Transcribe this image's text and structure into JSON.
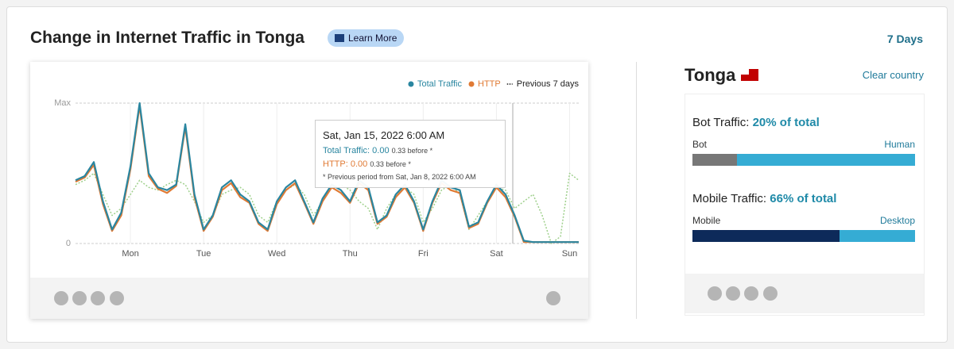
{
  "header": {
    "title": "Change in Internet Traffic in Tonga",
    "learn_more": "Learn More",
    "range": "7 Days"
  },
  "chart_data": {
    "type": "line",
    "categories": [
      null,
      null,
      null,
      null,
      null,
      null,
      "Mon",
      null,
      null,
      null,
      null,
      null,
      null,
      null,
      "Tue",
      null,
      null,
      null,
      null,
      null,
      null,
      null,
      "Wed",
      null,
      null,
      null,
      null,
      null,
      null,
      null,
      "Thu",
      null,
      null,
      null,
      null,
      null,
      null,
      null,
      "Fri",
      null,
      null,
      null,
      null,
      null,
      null,
      null,
      "Sat",
      null,
      null,
      null,
      null,
      null,
      null,
      null,
      "Sun",
      null
    ],
    "series": [
      {
        "name": "Total Traffic",
        "color": "#2a86a0",
        "style": "solid",
        "values": [
          0.45,
          0.48,
          0.58,
          0.3,
          0.1,
          0.22,
          0.55,
          1.0,
          0.5,
          0.4,
          0.38,
          0.42,
          0.85,
          0.35,
          0.1,
          0.2,
          0.4,
          0.45,
          0.35,
          0.3,
          0.15,
          0.1,
          0.3,
          0.4,
          0.45,
          0.3,
          0.15,
          0.32,
          0.42,
          0.38,
          0.3,
          0.45,
          0.4,
          0.15,
          0.2,
          0.35,
          0.42,
          0.3,
          0.1,
          0.3,
          0.45,
          0.4,
          0.38,
          0.12,
          0.15,
          0.3,
          0.42,
          0.35,
          0.2,
          0.02,
          0.01,
          0.01,
          0.01,
          0.01,
          0.01,
          0.01
        ]
      },
      {
        "name": "HTTP",
        "color": "#e07a34",
        "style": "solid",
        "values": [
          0.44,
          0.47,
          0.56,
          0.28,
          0.09,
          0.2,
          0.53,
          0.98,
          0.48,
          0.39,
          0.36,
          0.41,
          0.83,
          0.33,
          0.09,
          0.19,
          0.38,
          0.43,
          0.33,
          0.29,
          0.14,
          0.09,
          0.28,
          0.38,
          0.43,
          0.29,
          0.14,
          0.3,
          0.4,
          0.36,
          0.29,
          0.43,
          0.38,
          0.14,
          0.19,
          0.33,
          0.4,
          0.29,
          0.09,
          0.29,
          0.43,
          0.38,
          0.36,
          0.11,
          0.14,
          0.29,
          0.4,
          0.33,
          0.19,
          0.01,
          0.01,
          0.01,
          0.01,
          0.01,
          0.01,
          0.01
        ]
      },
      {
        "name": "Previous 7 days",
        "color": "#9fd08c",
        "style": "dotted",
        "values": [
          0.42,
          0.45,
          0.5,
          0.35,
          0.2,
          0.25,
          0.35,
          0.45,
          0.4,
          0.38,
          0.42,
          0.45,
          0.42,
          0.3,
          0.15,
          0.2,
          0.35,
          0.38,
          0.4,
          0.35,
          0.2,
          0.15,
          0.3,
          0.38,
          0.42,
          0.35,
          0.2,
          0.3,
          0.4,
          0.42,
          0.38,
          0.3,
          0.25,
          0.1,
          0.25,
          0.35,
          0.4,
          0.35,
          0.15,
          0.25,
          0.38,
          0.42,
          0.35,
          0.1,
          0.2,
          0.3,
          0.4,
          0.38,
          0.25,
          0.3,
          0.35,
          0.2,
          0.0,
          0.05,
          0.5,
          0.45
        ]
      }
    ],
    "ylim": [
      0,
      1
    ],
    "yticks": [
      0,
      {
        "value": 1,
        "label": "Max"
      }
    ],
    "grid": true
  },
  "tooltip": {
    "title": "Sat, Jan 15, 2022 6:00 AM",
    "lines": [
      {
        "label": "Total Traffic: 0.00",
        "note": "0.33 before *"
      },
      {
        "label": "HTTP: 0.00",
        "note": "0.33 before *"
      }
    ],
    "footnote": "* Previous period from Sat, Jan 8, 2022 6:00 AM"
  },
  "side": {
    "country": "Tonga",
    "clear": "Clear country",
    "bot": {
      "label": "Bot Traffic:",
      "value_text": "20% of total",
      "value": 20,
      "left": "Bot",
      "right": "Human"
    },
    "mobile": {
      "label": "Mobile Traffic:",
      "value_text": "66% of total",
      "value": 66,
      "left": "Mobile",
      "right": "Desktop"
    }
  }
}
